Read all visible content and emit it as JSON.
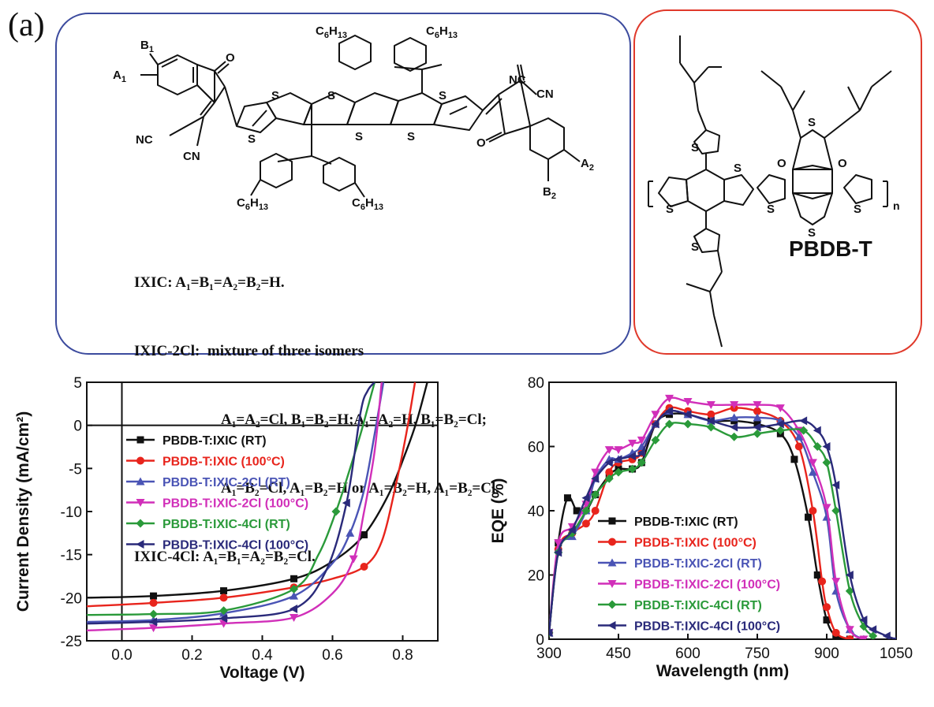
{
  "panel_label": "(a)",
  "chemistry": {
    "definitions": [
      "IXIC: A₁=B₁=A₂=B₂=H.",
      "IXIC-2Cl:  mixture of three isomers",
      "A₁=A₂=Cl, B₁=B₂=H;A₁=A₂=H, B₁=B₂=Cl;",
      "A₁=B₂=Cl, A₁=B₂=H or A₁=B₂=H, A₁=B₂=Cl.",
      "IXIC-4Cl: A₁=B₁=A₂=B₂=Cl."
    ],
    "polymer_name": "PBDB-T",
    "atom_labels": {
      "S": "S",
      "O": "O",
      "NC": "NC",
      "CN": "CN",
      "n": "n",
      "A1": "A",
      "A2": "A",
      "B1": "B",
      "B2": "B",
      "sub1": "1",
      "sub2": "2",
      "C": "C",
      "six": "6",
      "H": "H",
      "thirteen": "13"
    }
  },
  "chart_data": [
    {
      "type": "line",
      "xlabel": "Voltage (V)",
      "ylabel": "Current Density (mA/cm²)",
      "xlim": [
        -0.1,
        0.9
      ],
      "ylim": [
        -25,
        5
      ],
      "xticks": [
        "0.0",
        "0.2",
        "0.4",
        "0.6",
        "0.8"
      ],
      "xtick_values": [
        0.0,
        0.2,
        0.4,
        0.6,
        0.8
      ],
      "yticks": [
        "5",
        "0",
        "-5",
        "-10",
        "-15",
        "-20",
        "-25"
      ],
      "ytick_values": [
        5,
        0,
        -5,
        -10,
        -15,
        -20,
        -25
      ],
      "legend_position": "middle-left",
      "series": [
        {
          "name": "PBDB-T:IXIC (RT)",
          "color": "#111111",
          "marker": "square",
          "x": [
            -0.1,
            0.09,
            0.29,
            0.49,
            0.6,
            0.69,
            0.76,
            0.81,
            0.84,
            0.87
          ],
          "y": [
            -20.0,
            -19.8,
            -19.2,
            -17.8,
            -15.8,
            -12.7,
            -8.0,
            -3.0,
            0.5,
            5.0
          ]
        },
        {
          "name": "PBDB-T:IXIC (100°C)",
          "color": "#e8241c",
          "marker": "circle",
          "x": [
            -0.1,
            0.09,
            0.29,
            0.49,
            0.6,
            0.69,
            0.74,
            0.78,
            0.81,
            0.835
          ],
          "y": [
            -21.0,
            -20.6,
            -20.0,
            -18.8,
            -17.8,
            -16.4,
            -13.5,
            -7.0,
            -1.0,
            5.0
          ]
        },
        {
          "name": "PBDB-T:IXIC-2Cl (RT)",
          "color": "#4a54b5",
          "marker": "triangle-up",
          "x": [
            -0.1,
            0.09,
            0.29,
            0.49,
            0.6,
            0.65,
            0.69,
            0.72,
            0.745
          ],
          "y": [
            -22.8,
            -22.6,
            -21.8,
            -19.8,
            -16.0,
            -12.5,
            -7.5,
            -1.0,
            5.0
          ]
        },
        {
          "name": "PBDB-T:IXIC-2Cl (100°C)",
          "color": "#d12fb9",
          "marker": "triangle-down",
          "x": [
            -0.1,
            0.09,
            0.29,
            0.49,
            0.6,
            0.66,
            0.69,
            0.72,
            0.74
          ],
          "y": [
            -23.8,
            -23.5,
            -23.0,
            -22.3,
            -19.5,
            -15.5,
            -10.0,
            -3.0,
            5.0
          ]
        },
        {
          "name": "PBDB-T:IXIC-4Cl (RT)",
          "color": "#2a9a3a",
          "marker": "diamond",
          "x": [
            -0.1,
            0.09,
            0.29,
            0.49,
            0.56,
            0.61,
            0.65,
            0.68,
            0.7,
            0.72
          ],
          "y": [
            -22.0,
            -21.9,
            -21.5,
            -19.0,
            -15.0,
            -10.0,
            -5.0,
            -1.0,
            2.0,
            5.0
          ]
        },
        {
          "name": "PBDB-T:IXIC-4Cl (100°C)",
          "color": "#2a2a7a",
          "marker": "triangle-left",
          "x": [
            -0.1,
            0.09,
            0.29,
            0.49,
            0.58,
            0.64,
            0.68,
            0.7,
            0.72
          ],
          "y": [
            -23.0,
            -22.8,
            -22.4,
            -21.3,
            -17.0,
            -9.0,
            1.5,
            4.0,
            5.0
          ]
        }
      ]
    },
    {
      "type": "line",
      "xlabel": "Wavelength (nm)",
      "ylabel": "EQE (%)",
      "xlim": [
        300,
        1050
      ],
      "ylim": [
        0,
        80
      ],
      "xticks": [
        "300",
        "450",
        "600",
        "750",
        "900",
        "1050"
      ],
      "xtick_values": [
        300,
        450,
        600,
        750,
        900,
        1050
      ],
      "yticks": [
        "0",
        "20",
        "40",
        "60",
        "80"
      ],
      "ytick_values": [
        0,
        20,
        40,
        60,
        80
      ],
      "legend_position": "bottom-center",
      "series": [
        {
          "name": "PBDB-T:IXIC (RT)",
          "color": "#111111",
          "marker": "square",
          "x": [
            300,
            320,
            340,
            360,
            380,
            400,
            430,
            450,
            480,
            500,
            530,
            560,
            600,
            650,
            700,
            750,
            800,
            830,
            860,
            880,
            900,
            920,
            950
          ],
          "y": [
            2,
            30,
            44,
            40,
            40,
            45,
            51,
            53,
            53,
            55,
            67,
            70,
            70,
            68,
            68,
            67,
            64,
            56,
            38,
            20,
            6,
            1,
            0
          ]
        },
        {
          "name": "PBDB-T:IXIC (100°C)",
          "color": "#e8241c",
          "marker": "circle",
          "x": [
            300,
            320,
            350,
            380,
            400,
            430,
            450,
            480,
            500,
            530,
            560,
            600,
            650,
            700,
            750,
            800,
            840,
            870,
            890,
            900,
            920,
            950
          ],
          "y": [
            2,
            28,
            33,
            36,
            40,
            52,
            55,
            56,
            58,
            67,
            72,
            71,
            70,
            72,
            71,
            68,
            60,
            40,
            18,
            10,
            2,
            0
          ]
        },
        {
          "name": "PBDB-T:IXIC-2Cl (RT)",
          "color": "#4a54b5",
          "marker": "triangle-up",
          "x": [
            300,
            320,
            350,
            380,
            400,
            430,
            450,
            480,
            500,
            530,
            560,
            600,
            650,
            700,
            750,
            800,
            840,
            870,
            900,
            920,
            950,
            980
          ],
          "y": [
            2,
            28,
            32,
            40,
            50,
            56,
            56,
            58,
            60,
            67,
            71,
            70,
            68,
            69,
            69,
            68,
            63,
            52,
            38,
            15,
            3,
            0
          ]
        },
        {
          "name": "PBDB-T:IXIC-2Cl (100°C)",
          "color": "#d12fb9",
          "marker": "triangle-down",
          "x": [
            300,
            320,
            350,
            380,
            400,
            430,
            450,
            480,
            500,
            530,
            560,
            600,
            650,
            700,
            750,
            800,
            840,
            870,
            900,
            920,
            950,
            980
          ],
          "y": [
            2,
            30,
            35,
            42,
            52,
            59,
            59,
            61,
            62,
            70,
            75,
            74,
            73,
            73,
            73,
            72,
            65,
            55,
            41,
            18,
            3,
            0
          ]
        },
        {
          "name": "PBDB-T:IXIC-4Cl (RT)",
          "color": "#2a9a3a",
          "marker": "diamond",
          "x": [
            300,
            320,
            350,
            380,
            400,
            430,
            450,
            480,
            500,
            530,
            560,
            600,
            650,
            700,
            750,
            800,
            850,
            880,
            900,
            920,
            950,
            980,
            1000
          ],
          "y": [
            2,
            27,
            33,
            40,
            45,
            50,
            52,
            53,
            55,
            62,
            67,
            67,
            66,
            63,
            64,
            65,
            65,
            60,
            55,
            40,
            15,
            4,
            1
          ]
        },
        {
          "name": "PBDB-T:IXIC-4Cl (100°C)",
          "color": "#2a2a7a",
          "marker": "triangle-left",
          "x": [
            300,
            320,
            350,
            380,
            400,
            430,
            450,
            480,
            500,
            530,
            560,
            600,
            650,
            700,
            750,
            800,
            850,
            880,
            900,
            920,
            950,
            980,
            1000,
            1030,
            1050
          ],
          "y": [
            2,
            27,
            34,
            44,
            50,
            55,
            56,
            57,
            58,
            67,
            71,
            70,
            68,
            66,
            66,
            67,
            68,
            65,
            60,
            48,
            20,
            6,
            3,
            1,
            0
          ]
        }
      ]
    }
  ]
}
